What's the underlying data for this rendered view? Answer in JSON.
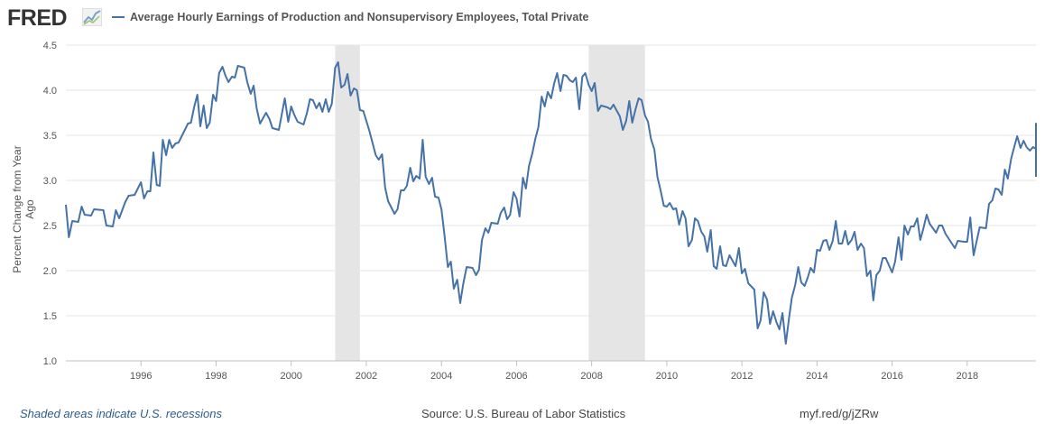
{
  "header": {
    "logo_text": "FRED",
    "logo_icon": "fred-graph-icon",
    "series_title": "Average Hourly Earnings of Production and Nonsupervisory Employees, Total Private"
  },
  "footer": {
    "recession_note": "Shaded areas indicate U.S. recessions",
    "source": "Source: U.S. Bureau of Labor Statistics",
    "short_url": "myf.red/g/jZRw"
  },
  "colors": {
    "line": "#4572a7",
    "recession": "#e5e5e5",
    "grid": "#e6e6e6"
  },
  "chart_data": {
    "type": "line",
    "title": "Average Hourly Earnings of Production and Nonsupervisory Employees, Total Private",
    "xlabel": "",
    "ylabel": "Percent Change from Year Ago",
    "xlim": [
      1994.0,
      2019.83
    ],
    "ylim": [
      1.0,
      4.5
    ],
    "yticks": [
      1.0,
      1.5,
      2.0,
      2.5,
      3.0,
      3.5,
      4.0,
      4.5
    ],
    "xticks": [
      1996,
      1998,
      2000,
      2002,
      2004,
      2006,
      2008,
      2010,
      2012,
      2014,
      2016,
      2018
    ],
    "grid": true,
    "recessions": [
      [
        2001.17,
        2001.83
      ],
      [
        2007.92,
        2009.42
      ]
    ],
    "series": [
      {
        "name": "Average Hourly Earnings of Production and Nonsupervisory Employees, Total Private",
        "points": [
          [
            1994.0,
            2.73
          ],
          [
            1994.08,
            2.37
          ],
          [
            1994.17,
            2.55
          ],
          [
            1994.33,
            2.54
          ],
          [
            1994.42,
            2.71
          ],
          [
            1994.5,
            2.62
          ],
          [
            1994.67,
            2.61
          ],
          [
            1994.75,
            2.68
          ],
          [
            1995.0,
            2.67
          ],
          [
            1995.08,
            2.5
          ],
          [
            1995.25,
            2.49
          ],
          [
            1995.33,
            2.67
          ],
          [
            1995.42,
            2.58
          ],
          [
            1995.58,
            2.76
          ],
          [
            1995.67,
            2.83
          ],
          [
            1995.83,
            2.84
          ],
          [
            1996.0,
            2.98
          ],
          [
            1996.08,
            2.8
          ],
          [
            1996.17,
            2.88
          ],
          [
            1996.25,
            2.88
          ],
          [
            1996.33,
            3.31
          ],
          [
            1996.42,
            2.95
          ],
          [
            1996.5,
            2.94
          ],
          [
            1996.58,
            3.45
          ],
          [
            1996.67,
            3.28
          ],
          [
            1996.75,
            3.45
          ],
          [
            1996.83,
            3.36
          ],
          [
            1996.92,
            3.41
          ],
          [
            1997.0,
            3.42
          ],
          [
            1997.25,
            3.63
          ],
          [
            1997.33,
            3.64
          ],
          [
            1997.42,
            3.82
          ],
          [
            1997.5,
            3.95
          ],
          [
            1997.58,
            3.6
          ],
          [
            1997.67,
            3.83
          ],
          [
            1997.75,
            3.58
          ],
          [
            1997.83,
            3.64
          ],
          [
            1997.92,
            3.95
          ],
          [
            1998.0,
            3.88
          ],
          [
            1998.08,
            4.19
          ],
          [
            1998.17,
            4.26
          ],
          [
            1998.25,
            4.16
          ],
          [
            1998.33,
            4.09
          ],
          [
            1998.42,
            4.15
          ],
          [
            1998.5,
            4.14
          ],
          [
            1998.58,
            4.27
          ],
          [
            1998.75,
            4.25
          ],
          [
            1998.83,
            4.09
          ],
          [
            1998.92,
            3.96
          ],
          [
            1999.0,
            4.05
          ],
          [
            1999.08,
            3.8
          ],
          [
            1999.17,
            3.63
          ],
          [
            1999.33,
            3.75
          ],
          [
            1999.42,
            3.68
          ],
          [
            1999.5,
            3.58
          ],
          [
            1999.67,
            3.56
          ],
          [
            1999.83,
            3.91
          ],
          [
            1999.92,
            3.65
          ],
          [
            2000.0,
            3.82
          ],
          [
            2000.08,
            3.73
          ],
          [
            2000.17,
            3.65
          ],
          [
            2000.33,
            3.62
          ],
          [
            2000.42,
            3.75
          ],
          [
            2000.5,
            3.9
          ],
          [
            2000.58,
            3.89
          ],
          [
            2000.67,
            3.8
          ],
          [
            2000.75,
            3.86
          ],
          [
            2000.83,
            3.76
          ],
          [
            2000.92,
            3.9
          ],
          [
            2001.0,
            3.76
          ],
          [
            2001.08,
            3.85
          ],
          [
            2001.17,
            4.25
          ],
          [
            2001.25,
            4.31
          ],
          [
            2001.33,
            4.03
          ],
          [
            2001.42,
            4.06
          ],
          [
            2001.5,
            4.18
          ],
          [
            2001.58,
            3.94
          ],
          [
            2001.67,
            4.02
          ],
          [
            2001.75,
            4.0
          ],
          [
            2001.83,
            3.78
          ],
          [
            2001.92,
            3.77
          ],
          [
            2002.08,
            3.55
          ],
          [
            2002.25,
            3.28
          ],
          [
            2002.33,
            3.23
          ],
          [
            2002.42,
            3.29
          ],
          [
            2002.5,
            2.92
          ],
          [
            2002.58,
            2.77
          ],
          [
            2002.75,
            2.63
          ],
          [
            2002.83,
            2.68
          ],
          [
            2002.92,
            2.89
          ],
          [
            2003.0,
            2.89
          ],
          [
            2003.08,
            2.94
          ],
          [
            2003.17,
            3.14
          ],
          [
            2003.25,
            2.99
          ],
          [
            2003.33,
            3.05
          ],
          [
            2003.42,
            3.02
          ],
          [
            2003.5,
            3.45
          ],
          [
            2003.58,
            3.04
          ],
          [
            2003.67,
            2.96
          ],
          [
            2003.75,
            3.03
          ],
          [
            2003.83,
            2.82
          ],
          [
            2003.92,
            2.81
          ],
          [
            2004.0,
            2.68
          ],
          [
            2004.08,
            2.4
          ],
          [
            2004.17,
            2.04
          ],
          [
            2004.25,
            2.1
          ],
          [
            2004.33,
            1.8
          ],
          [
            2004.42,
            1.9
          ],
          [
            2004.5,
            1.64
          ],
          [
            2004.58,
            1.85
          ],
          [
            2004.67,
            2.04
          ],
          [
            2004.83,
            2.03
          ],
          [
            2004.92,
            1.95
          ],
          [
            2005.0,
            2.01
          ],
          [
            2005.08,
            2.34
          ],
          [
            2005.17,
            2.47
          ],
          [
            2005.25,
            2.42
          ],
          [
            2005.33,
            2.53
          ],
          [
            2005.5,
            2.52
          ],
          [
            2005.58,
            2.64
          ],
          [
            2005.67,
            2.7
          ],
          [
            2005.75,
            2.57
          ],
          [
            2005.83,
            2.62
          ],
          [
            2005.92,
            2.87
          ],
          [
            2006.0,
            2.8
          ],
          [
            2006.08,
            2.6
          ],
          [
            2006.17,
            3.03
          ],
          [
            2006.25,
            2.91
          ],
          [
            2006.33,
            3.16
          ],
          [
            2006.42,
            3.3
          ],
          [
            2006.5,
            3.46
          ],
          [
            2006.58,
            3.59
          ],
          [
            2006.67,
            3.93
          ],
          [
            2006.75,
            3.82
          ],
          [
            2006.83,
            3.98
          ],
          [
            2006.92,
            3.91
          ],
          [
            2007.0,
            4.07
          ],
          [
            2007.08,
            4.19
          ],
          [
            2007.17,
            3.99
          ],
          [
            2007.25,
            4.17
          ],
          [
            2007.33,
            4.16
          ],
          [
            2007.42,
            4.11
          ],
          [
            2007.5,
            4.09
          ],
          [
            2007.58,
            4.14
          ],
          [
            2007.67,
            3.79
          ],
          [
            2007.75,
            4.15
          ],
          [
            2007.83,
            4.19
          ],
          [
            2007.92,
            4.06
          ],
          [
            2008.0,
            3.99
          ],
          [
            2008.08,
            4.08
          ],
          [
            2008.17,
            3.77
          ],
          [
            2008.25,
            3.83
          ],
          [
            2008.42,
            3.81
          ],
          [
            2008.5,
            3.79
          ],
          [
            2008.58,
            3.84
          ],
          [
            2008.75,
            3.71
          ],
          [
            2008.83,
            3.56
          ],
          [
            2008.92,
            3.66
          ],
          [
            2009.0,
            3.88
          ],
          [
            2009.08,
            3.64
          ],
          [
            2009.17,
            3.79
          ],
          [
            2009.25,
            3.91
          ],
          [
            2009.33,
            3.89
          ],
          [
            2009.42,
            3.72
          ],
          [
            2009.5,
            3.65
          ],
          [
            2009.58,
            3.46
          ],
          [
            2009.67,
            3.34
          ],
          [
            2009.75,
            3.04
          ],
          [
            2009.83,
            2.9
          ],
          [
            2009.92,
            2.72
          ],
          [
            2010.0,
            2.71
          ],
          [
            2010.08,
            2.75
          ],
          [
            2010.17,
            2.68
          ],
          [
            2010.25,
            2.69
          ],
          [
            2010.33,
            2.51
          ],
          [
            2010.42,
            2.66
          ],
          [
            2010.5,
            2.58
          ],
          [
            2010.58,
            2.27
          ],
          [
            2010.67,
            2.34
          ],
          [
            2010.75,
            2.58
          ],
          [
            2010.83,
            2.55
          ],
          [
            2010.92,
            2.43
          ],
          [
            2011.0,
            2.38
          ],
          [
            2011.08,
            2.21
          ],
          [
            2011.17,
            2.45
          ],
          [
            2011.25,
            2.05
          ],
          [
            2011.33,
            2.02
          ],
          [
            2011.42,
            2.27
          ],
          [
            2011.5,
            2.06
          ],
          [
            2011.58,
            2.05
          ],
          [
            2011.67,
            2.17
          ],
          [
            2011.83,
            2.05
          ],
          [
            2011.92,
            2.25
          ],
          [
            2012.0,
            1.97
          ],
          [
            2012.08,
            2.02
          ],
          [
            2012.17,
            1.86
          ],
          [
            2012.33,
            1.79
          ],
          [
            2012.42,
            1.36
          ],
          [
            2012.5,
            1.45
          ],
          [
            2012.58,
            1.76
          ],
          [
            2012.67,
            1.68
          ],
          [
            2012.75,
            1.41
          ],
          [
            2012.83,
            1.55
          ],
          [
            2012.92,
            1.43
          ],
          [
            2013.0,
            1.35
          ],
          [
            2013.08,
            1.53
          ],
          [
            2013.17,
            1.19
          ],
          [
            2013.25,
            1.46
          ],
          [
            2013.33,
            1.7
          ],
          [
            2013.42,
            1.84
          ],
          [
            2013.5,
            2.04
          ],
          [
            2013.58,
            1.87
          ],
          [
            2013.67,
            1.83
          ],
          [
            2013.75,
            1.92
          ],
          [
            2013.83,
            2.03
          ],
          [
            2013.92,
            1.98
          ],
          [
            2014.0,
            2.23
          ],
          [
            2014.08,
            2.22
          ],
          [
            2014.17,
            2.33
          ],
          [
            2014.25,
            2.34
          ],
          [
            2014.33,
            2.23
          ],
          [
            2014.42,
            2.33
          ],
          [
            2014.5,
            2.55
          ],
          [
            2014.58,
            2.3
          ],
          [
            2014.67,
            2.3
          ],
          [
            2014.75,
            2.44
          ],
          [
            2014.83,
            2.29
          ],
          [
            2014.92,
            2.34
          ],
          [
            2015.0,
            2.43
          ],
          [
            2015.08,
            2.23
          ],
          [
            2015.17,
            2.3
          ],
          [
            2015.25,
            2.25
          ],
          [
            2015.33,
            1.94
          ],
          [
            2015.42,
            2.0
          ],
          [
            2015.5,
            1.67
          ],
          [
            2015.58,
            1.95
          ],
          [
            2015.67,
            2.0
          ],
          [
            2015.75,
            2.14
          ],
          [
            2015.83,
            2.14
          ],
          [
            2016.0,
            1.98
          ],
          [
            2016.08,
            2.1
          ],
          [
            2016.17,
            2.37
          ],
          [
            2016.25,
            2.12
          ],
          [
            2016.33,
            2.5
          ],
          [
            2016.42,
            2.4
          ],
          [
            2016.5,
            2.49
          ],
          [
            2016.58,
            2.49
          ],
          [
            2016.67,
            2.58
          ],
          [
            2016.75,
            2.34
          ],
          [
            2016.83,
            2.46
          ],
          [
            2016.92,
            2.62
          ],
          [
            2017.0,
            2.52
          ],
          [
            2017.17,
            2.42
          ],
          [
            2017.25,
            2.5
          ],
          [
            2017.33,
            2.5
          ],
          [
            2017.42,
            2.41
          ],
          [
            2017.67,
            2.25
          ],
          [
            2017.75,
            2.33
          ],
          [
            2017.92,
            2.32
          ],
          [
            2018.0,
            2.32
          ],
          [
            2018.08,
            2.59
          ],
          [
            2018.17,
            2.17
          ],
          [
            2018.33,
            2.48
          ],
          [
            2018.5,
            2.47
          ],
          [
            2018.58,
            2.74
          ],
          [
            2018.67,
            2.78
          ],
          [
            2018.75,
            2.91
          ],
          [
            2018.83,
            2.9
          ],
          [
            2018.92,
            2.84
          ],
          [
            2019.0,
            3.12
          ],
          [
            2019.08,
            3.02
          ],
          [
            2019.17,
            3.24
          ],
          [
            2019.25,
            3.37
          ],
          [
            2019.33,
            3.49
          ],
          [
            2019.42,
            3.36
          ],
          [
            2019.5,
            3.44
          ],
          [
            2019.58,
            3.37
          ],
          [
            2019.67,
            3.33
          ],
          [
            2019.75,
            3.37
          ],
          [
            2019.83,
            3.35
          ],
          [
            2019.92,
            3.52
          ],
          [
            2020.0,
            3.51
          ],
          [
            2020.08,
            3.55
          ],
          [
            2020.17,
            3.63
          ],
          [
            2020.25,
            3.4
          ],
          [
            2020.33,
            3.04
          ]
        ]
      }
    ]
  }
}
